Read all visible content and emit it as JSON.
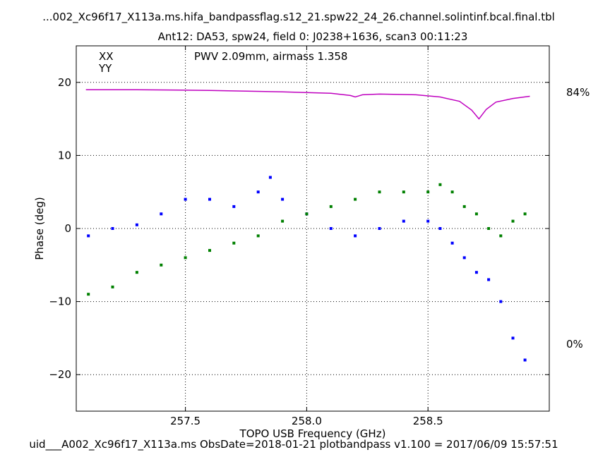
{
  "chart_data": {
    "type": "scatter",
    "title": "...002_Xc96f17_X113a.ms.hifa_bandpassflag.s12_21.spw22_24_26.channel.solintinf.bcal.final.tbl",
    "subtitle": "Ant12: DA53,  spw24,  field 0: J0238+1636,  scan3  00:11:23",
    "xlabel": "TOPO USB Frequency (GHz)",
    "ylabel": "Phase (deg)",
    "xlim": [
      257.05,
      259.0
    ],
    "ylim": [
      -25,
      25
    ],
    "xticks": [
      257.5,
      258.0,
      258.5
    ],
    "xtick_labels": [
      "257.5",
      "258.0",
      "258.5"
    ],
    "yticks": [
      -20,
      -10,
      0,
      10,
      20
    ],
    "ytick_labels": [
      "−20",
      "−10",
      "0",
      "10",
      "20"
    ],
    "grid": true,
    "legend_position": "top-left",
    "pwv_annotation": "PWV 2.09mm, airmass 1.358",
    "footer": "uid___A002_Xc96f17_X113a.ms  ObsDate=2018-01-21   plotbandpass v1.100 = 2017/06/09 15:57:51",
    "transmission_labels": {
      "top": "84%",
      "bottom": "0%"
    },
    "transmission_color": "#bf00bf",
    "series": [
      {
        "name": "XX",
        "color": "#0000ff",
        "x": [
          257.1,
          257.2,
          257.3,
          257.4,
          257.5,
          257.6,
          257.7,
          257.8,
          257.85,
          257.9,
          258.0,
          258.1,
          258.2,
          258.3,
          258.4,
          258.5,
          258.55,
          258.6,
          258.65,
          258.7,
          258.75,
          258.8,
          258.85,
          258.9
        ],
        "y": [
          -1,
          0,
          0.5,
          2,
          4,
          4,
          3,
          5,
          7,
          4,
          2,
          0,
          -1,
          0,
          1,
          1,
          0,
          -2,
          -4,
          -6,
          -7,
          -10,
          -15,
          -18
        ]
      },
      {
        "name": "YY",
        "color": "#008000",
        "x": [
          257.1,
          257.2,
          257.3,
          257.4,
          257.5,
          257.6,
          257.7,
          257.8,
          257.9,
          258.0,
          258.1,
          258.2,
          258.3,
          258.4,
          258.5,
          258.55,
          258.6,
          258.65,
          258.7,
          258.75,
          258.8,
          258.85,
          258.9
        ],
        "y": [
          -9,
          -8,
          -6,
          -5,
          -4,
          -3,
          -2,
          -1,
          1,
          2,
          3,
          4,
          5,
          5,
          5,
          6,
          5,
          3,
          2,
          0,
          -1,
          1,
          2
        ]
      }
    ],
    "transmission_curve": {
      "x": [
        257.09,
        257.3,
        257.6,
        257.9,
        258.1,
        258.18,
        258.2,
        258.23,
        258.3,
        258.45,
        258.55,
        258.63,
        258.68,
        258.71,
        258.74,
        258.78,
        258.85,
        258.92
      ],
      "y": [
        19.0,
        19.0,
        18.9,
        18.7,
        18.5,
        18.2,
        18.0,
        18.3,
        18.4,
        18.3,
        18.0,
        17.4,
        16.2,
        15.0,
        16.3,
        17.3,
        17.8,
        18.1
      ]
    }
  }
}
